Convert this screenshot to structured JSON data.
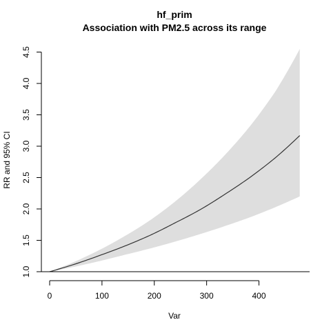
{
  "chart_data": {
    "type": "line",
    "title": "hf_prim",
    "subtitle": "Association with PM2.5 across its range",
    "xlabel": "Var",
    "ylabel": "RR and 95% CI",
    "xlim": [
      0,
      480
    ],
    "ylim": [
      1.0,
      4.5
    ],
    "xticks": [
      "0",
      "100",
      "200",
      "300",
      "400"
    ],
    "yticks": [
      "1.0",
      "1.5",
      "2.0",
      "2.5",
      "3.0",
      "3.5",
      "4.0",
      "4.5"
    ],
    "reference_line": 1.0,
    "x": [
      0,
      48,
      96,
      144,
      192,
      240,
      288,
      336,
      384,
      432,
      478
    ],
    "series": [
      {
        "role": "estimate",
        "values": [
          1.0,
          1.12,
          1.26,
          1.41,
          1.58,
          1.78,
          1.99,
          2.24,
          2.51,
          2.82,
          3.17
        ]
      },
      {
        "role": "ci-lower",
        "values": [
          1.0,
          1.08,
          1.17,
          1.27,
          1.37,
          1.48,
          1.6,
          1.73,
          1.87,
          2.03,
          2.2
        ]
      },
      {
        "role": "ci-upper",
        "values": [
          1.0,
          1.16,
          1.35,
          1.57,
          1.82,
          2.12,
          2.47,
          2.87,
          3.33,
          3.88,
          4.55
        ]
      }
    ],
    "colors": {
      "ci_band": "#dedede",
      "line": "#333333",
      "axis": "#000000"
    }
  }
}
